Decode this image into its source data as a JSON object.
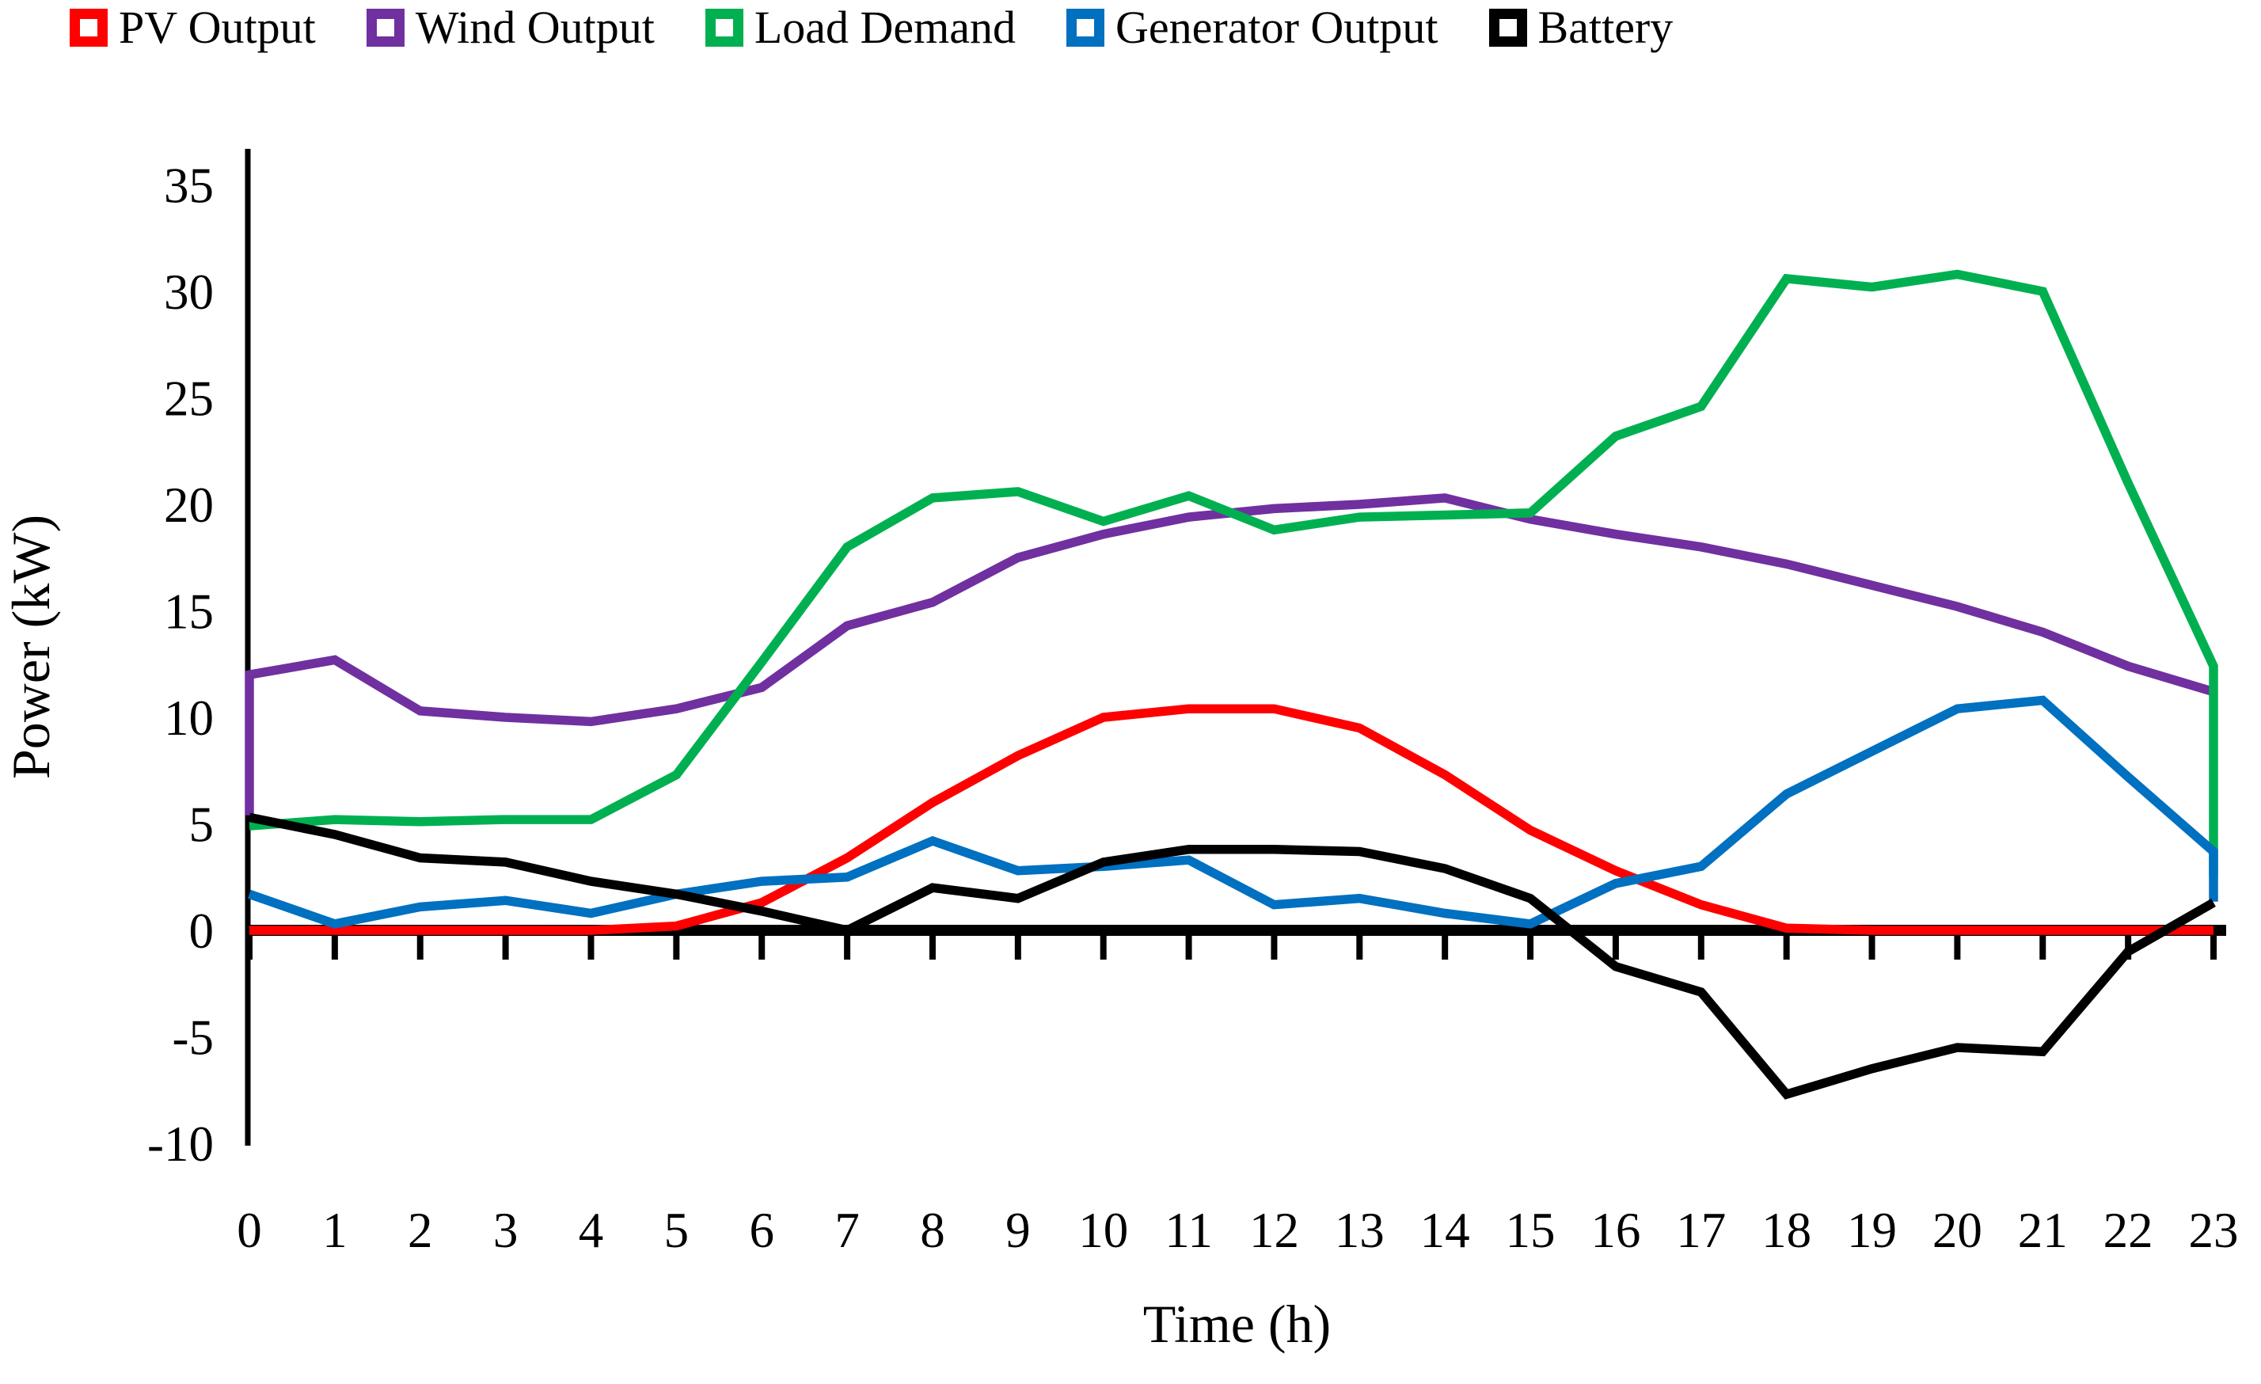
{
  "chart_data": {
    "type": "line",
    "xlabel": "Time (h)",
    "ylabel": "Power (kW)",
    "x": [
      0,
      1,
      2,
      3,
      4,
      5,
      6,
      7,
      8,
      9,
      10,
      11,
      12,
      13,
      14,
      15,
      16,
      17,
      18,
      19,
      20,
      21,
      22,
      23
    ],
    "x_tick_labels": [
      "0",
      "1",
      "2",
      "3",
      "4",
      "5",
      "6",
      "7",
      "8",
      "9",
      "10",
      "11",
      "12",
      "13",
      "14",
      "15",
      "16",
      "17",
      "18",
      "19",
      "20",
      "21",
      "22",
      "23"
    ],
    "y_ticks": [
      35,
      30,
      25,
      20,
      15,
      10,
      5,
      0,
      -5,
      -10
    ],
    "y_tick_labels": [
      "35",
      "30",
      "25",
      "20",
      "15",
      "10",
      "5",
      "0",
      "-5",
      "-10"
    ],
    "ylim": [
      -10,
      35
    ],
    "xlim": [
      0,
      23
    ],
    "grid": false,
    "legend_position": "top",
    "background_color": "#ffffff",
    "axis_color": "#000000",
    "series": [
      {
        "name": "PV Output",
        "color": "#FF0000",
        "values": [
          0,
          0,
          0,
          0,
          0,
          0.2,
          1.3,
          3.4,
          6.0,
          8.2,
          10.0,
          10.4,
          10.4,
          9.5,
          7.3,
          4.7,
          2.8,
          1.2,
          0.1,
          0,
          0,
          0,
          0,
          0
        ]
      },
      {
        "name": "Wind Output",
        "color": "#7030A0",
        "edge_start_value": 5.4,
        "values": [
          12.0,
          12.7,
          10.3,
          10.0,
          9.8,
          10.4,
          11.4,
          14.3,
          15.4,
          17.5,
          18.6,
          19.4,
          19.8,
          20.0,
          20.3,
          19.3,
          18.6,
          18.0,
          17.2,
          16.2,
          15.2,
          14.0,
          12.4,
          11.2
        ]
      },
      {
        "name": "Load Demand",
        "color": "#00B050",
        "edge_end_value": 2.5,
        "values": [
          4.9,
          5.2,
          5.1,
          5.2,
          5.2,
          7.3,
          12.6,
          18.0,
          20.3,
          20.6,
          19.2,
          20.4,
          18.8,
          19.4,
          19.5,
          19.6,
          23.2,
          24.6,
          30.6,
          30.2,
          30.8,
          30.0,
          21.0,
          12.4
        ]
      },
      {
        "name": "Generator Output",
        "color": "#0070C0",
        "edge_end_value": 1.35,
        "values": [
          1.7,
          0.3,
          1.1,
          1.4,
          0.8,
          1.7,
          2.3,
          2.5,
          4.2,
          2.8,
          3.0,
          3.3,
          1.2,
          1.5,
          0.8,
          0.3,
          2.2,
          3.0,
          6.4,
          8.4,
          10.4,
          10.8,
          7.2,
          3.7
        ]
      },
      {
        "name": "Battery",
        "color": "#000000",
        "values": [
          5.3,
          4.5,
          3.4,
          3.2,
          2.3,
          1.7,
          0.9,
          0.0,
          2.0,
          1.5,
          3.2,
          3.8,
          3.8,
          3.7,
          2.9,
          1.5,
          -1.7,
          -2.9,
          -7.7,
          -6.5,
          -5.5,
          -5.7,
          -1.0,
          1.3
        ]
      }
    ]
  }
}
